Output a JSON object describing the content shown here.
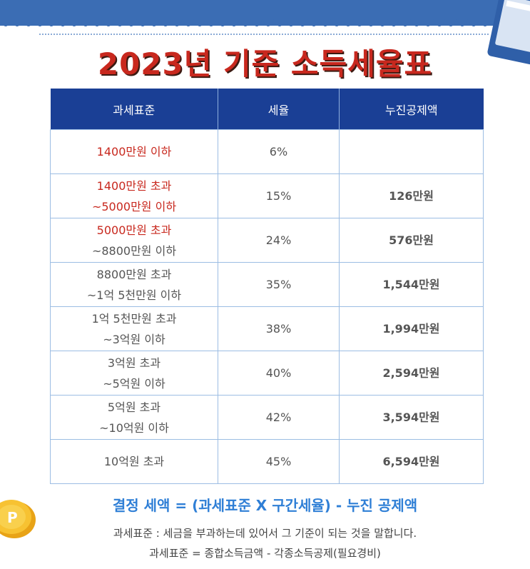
{
  "title": "2023년 기준 소득세율표",
  "colors": {
    "header_bg": "#1a3f95",
    "accent_red": "#c8281e",
    "formula_blue": "#2f7fd6",
    "banner_blue": "#3b6db4"
  },
  "icons": [
    "laptop-icon",
    "coin-icon"
  ],
  "table": {
    "headers": [
      "과세표준",
      "세율",
      "누진공제액"
    ],
    "rows": [
      {
        "bracket_1": "1400만원 이하",
        "bracket_2": "",
        "rate": "6%",
        "deduction": ""
      },
      {
        "bracket_1": "1400만원 초과",
        "bracket_2": "~5000만원 이하",
        "rate": "15%",
        "deduction": "126만원"
      },
      {
        "bracket_1": "5000만원 초과",
        "bracket_2": "~8800만원 이하",
        "rate": "24%",
        "deduction": "576만원"
      },
      {
        "bracket_1": "8800만원 초과",
        "bracket_2": "~1억 5천만원 이하",
        "rate": "35%",
        "deduction": "1,544만원"
      },
      {
        "bracket_1": "1억 5천만원 초과",
        "bracket_2": "~3억원 이하",
        "rate": "38%",
        "deduction": "1,994만원"
      },
      {
        "bracket_1": "3억원 초과",
        "bracket_2": "~5억원 이하",
        "rate": "40%",
        "deduction": "2,594만원"
      },
      {
        "bracket_1": "5억원 초과",
        "bracket_2": "~10억원 이하",
        "rate": "42%",
        "deduction": "3,594만원"
      },
      {
        "bracket_1": "10억원 초과",
        "bracket_2": "",
        "rate": "45%",
        "deduction": "6,594만원"
      }
    ]
  },
  "formula": "결정 세액 = (과세표준 X 구간세율) - 누진 공제액",
  "notes": {
    "line1": "과세표준 : 세금을 부과하는데 있어서 그 기준이 되는 것을 말합니다.",
    "line2": "과세표준 = 종합소득금액 - 각종소득공제(필요경비)"
  }
}
